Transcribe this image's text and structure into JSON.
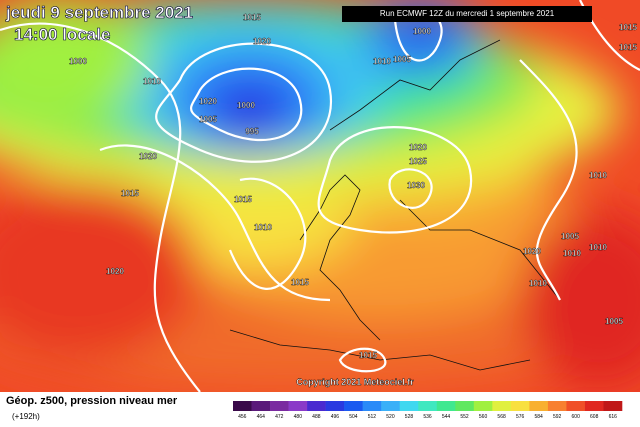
{
  "header": {
    "date": "jeudi 9 septembre 2021",
    "time": "14:00 locale",
    "run": "Run ECMWF 12Z du mercredi 1 septembre 2021"
  },
  "map": {
    "isobar_labels": [
      "1015",
      "1020",
      "1000",
      "1010",
      "1000",
      "1005",
      "1010",
      "1015",
      "1015",
      "1020",
      "1005",
      "1000",
      "995",
      "1020",
      "1020",
      "1025",
      "1030",
      "1015",
      "1015",
      "1010",
      "1010",
      "1020",
      "1015",
      "1020",
      "1010",
      "1005",
      "1010",
      "1005",
      "1015",
      "1010"
    ],
    "copyright": "Copyright 2021 Meteociel.fr"
  },
  "footer": {
    "title": "Géop. z500, pression niveau mer",
    "lead": "(+192h)"
  },
  "colorbar": {
    "values": [
      456,
      464,
      472,
      480,
      488,
      496,
      504,
      512,
      520,
      528,
      536,
      544,
      552,
      560,
      568,
      576,
      584,
      592,
      600,
      608,
      616
    ],
    "colors": [
      "#3a0a4a",
      "#5a1a7a",
      "#7a2aa0",
      "#8a3ac8",
      "#4a2ad0",
      "#2a3ae0",
      "#1a5af0",
      "#2a8af8",
      "#3ab0f8",
      "#40d8f0",
      "#40e8c0",
      "#40e890",
      "#60e860",
      "#a0f040",
      "#e0f040",
      "#f8e040",
      "#f8b030",
      "#f88030",
      "#f05028",
      "#e02820",
      "#c01818"
    ]
  }
}
